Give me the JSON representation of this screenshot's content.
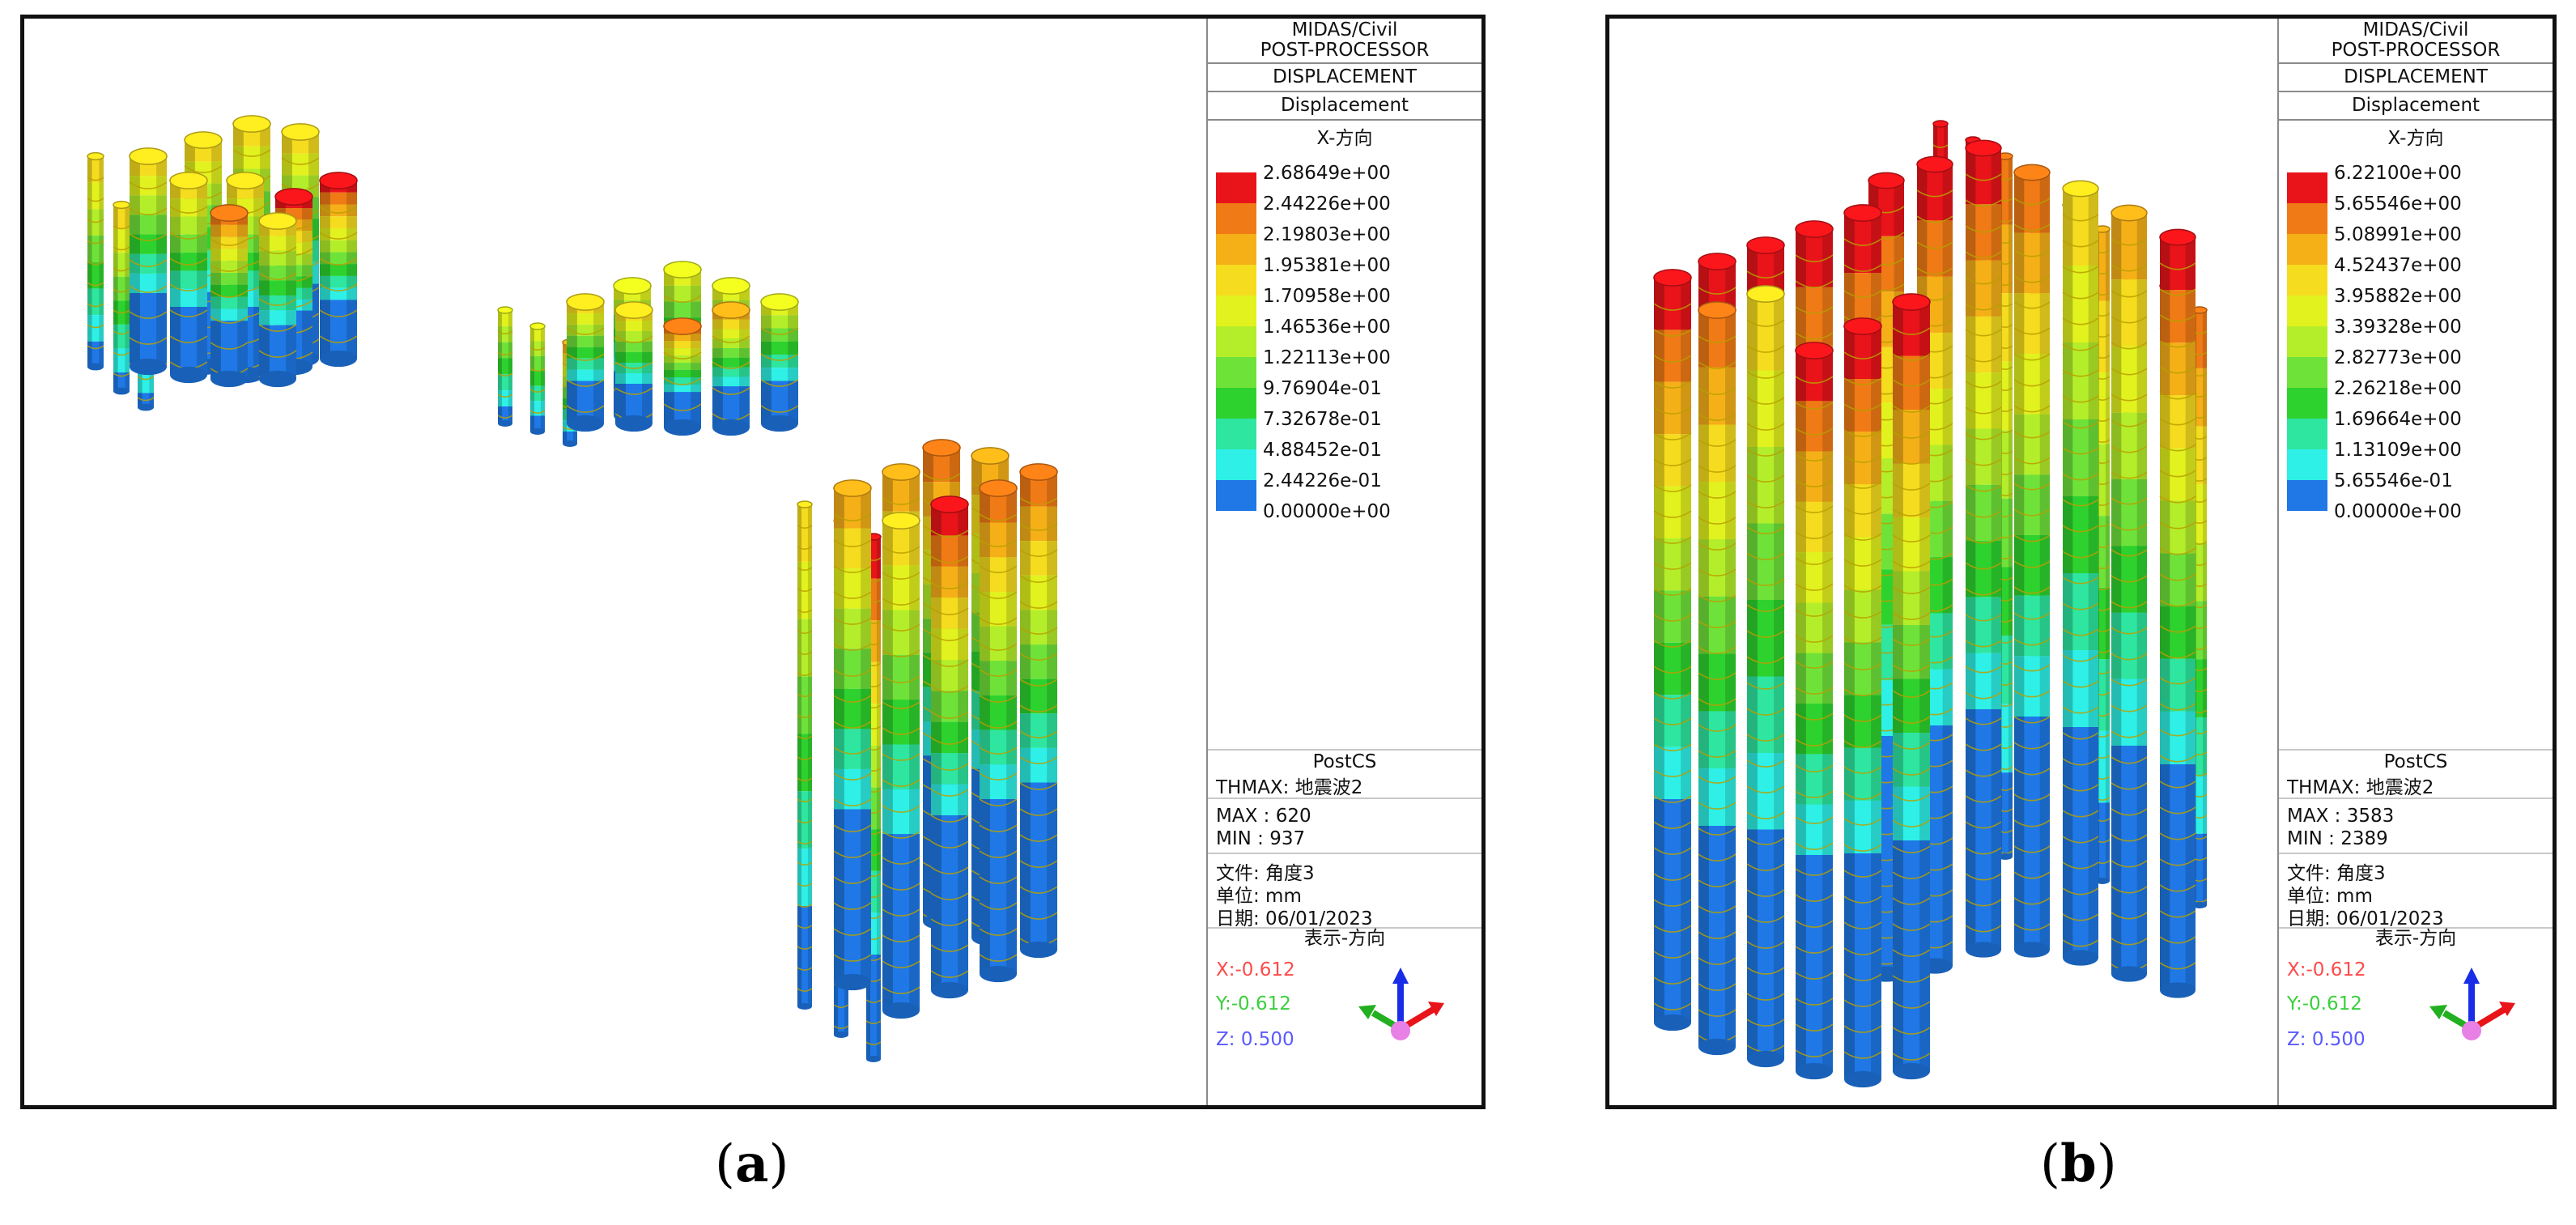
{
  "panels": [
    {
      "id": "a",
      "caption_open": "(",
      "caption_letter": "a",
      "caption_close": ")",
      "legend": {
        "header": [
          "MIDAS/Civil",
          "POST-PROCESSOR"
        ],
        "type": "DISPLACEMENT",
        "subtype": "Displacement",
        "component": "X-方向",
        "values": [
          "2.68649e+00",
          "2.44226e+00",
          "2.19803e+00",
          "1.95381e+00",
          "1.70958e+00",
          "1.46536e+00",
          "1.22113e+00",
          "9.76904e-01",
          "7.32678e-01",
          "4.88452e-01",
          "2.44226e-01",
          "0.00000e+00"
        ],
        "stage": "PostCS",
        "load": "THMAX: 地震波2",
        "max": "MAX : 620",
        "min": "MIN : 937",
        "file": "文件: 角度3",
        "unit": "单位: mm",
        "date": "日期: 06/01/2023",
        "dir_title": "表示-方向",
        "x": "X:-0.612",
        "y": "Y:-0.612",
        "z": "Z:  0.500"
      }
    },
    {
      "id": "b",
      "caption_open": "(",
      "caption_letter": "b",
      "caption_close": ")",
      "legend": {
        "header": [
          "MIDAS/Civil",
          "POST-PROCESSOR"
        ],
        "type": "DISPLACEMENT",
        "subtype": "Displacement",
        "component": "X-方向",
        "values": [
          "6.22100e+00",
          "5.65546e+00",
          "5.08991e+00",
          "4.52437e+00",
          "3.95882e+00",
          "3.39328e+00",
          "2.82773e+00",
          "2.26218e+00",
          "1.69664e+00",
          "1.13109e+00",
          "5.65546e-01",
          "0.00000e+00"
        ],
        "stage": "PostCS",
        "load": "THMAX: 地震波2",
        "max": "MAX : 3583",
        "min": "MIN : 2389",
        "file": "文件: 角度3",
        "unit": "单位: mm",
        "date": "日期: 06/01/2023",
        "dir_title": "表示-方向",
        "x": "X:-0.612",
        "y": "Y:-0.612",
        "z": "Z:  0.500"
      }
    }
  ],
  "colors": {
    "scale": [
      "#e8141a",
      "#f07a15",
      "#f5b018",
      "#f5dc1e",
      "#e2f21e",
      "#b4ee2a",
      "#6fe23a",
      "#2ed22e",
      "#2ee6a0",
      "#2ef0e6",
      "#1f78e6"
    ],
    "axis_x": "#e8141a",
    "axis_y": "#22b020",
    "axis_z": "#1a2de6",
    "axis_origin": "#e880e6",
    "text_x": "#ff4a4a",
    "text_y": "#3ccf3c",
    "text_z": "#5a5aff"
  },
  "icons": [
    "axis-triad-icon"
  ]
}
